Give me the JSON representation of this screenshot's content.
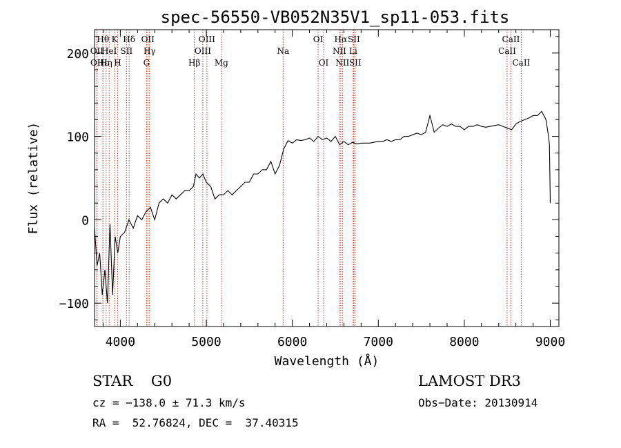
{
  "chart_data": {
    "type": "line",
    "title": "spec-56550-VB052N35V1_sp11-053.fits",
    "xlabel": "Wavelength (Å)",
    "ylabel": "Flux (relative)",
    "xlim": [
      3700,
      9100
    ],
    "ylim": [
      -128,
      228
    ],
    "xticks": [
      4000,
      5000,
      6000,
      7000,
      8000,
      9000
    ],
    "yticks": [
      -100,
      0,
      100,
      200
    ],
    "series": [
      {
        "name": "flux",
        "x": [
          3700,
          3730,
          3760,
          3790,
          3820,
          3850,
          3880,
          3910,
          3940,
          3970,
          4000,
          4050,
          4100,
          4150,
          4200,
          4250,
          4300,
          4350,
          4400,
          4450,
          4500,
          4550,
          4600,
          4650,
          4700,
          4750,
          4800,
          4850,
          4880,
          4920,
          4960,
          5000,
          5050,
          5100,
          5150,
          5200,
          5250,
          5300,
          5350,
          5400,
          5450,
          5500,
          5550,
          5600,
          5650,
          5700,
          5750,
          5800,
          5850,
          5900,
          5950,
          6000,
          6050,
          6100,
          6150,
          6200,
          6250,
          6300,
          6350,
          6400,
          6450,
          6500,
          6550,
          6600,
          6650,
          6700,
          6750,
          6800,
          6850,
          6900,
          6950,
          7000,
          7050,
          7100,
          7150,
          7200,
          7250,
          7300,
          7350,
          7400,
          7450,
          7500,
          7550,
          7600,
          7650,
          7700,
          7750,
          7800,
          7850,
          7900,
          7950,
          8000,
          8050,
          8100,
          8150,
          8200,
          8250,
          8300,
          8350,
          8400,
          8450,
          8500,
          8550,
          8600,
          8650,
          8700,
          8750,
          8800,
          8850,
          8900,
          8950,
          8980,
          8990,
          9000
        ],
        "y": [
          -10,
          -55,
          -40,
          -90,
          -60,
          -100,
          -5,
          -90,
          -20,
          -40,
          -20,
          -15,
          0,
          -10,
          5,
          0,
          10,
          15,
          0,
          20,
          25,
          20,
          30,
          25,
          30,
          35,
          35,
          40,
          55,
          50,
          55,
          45,
          40,
          25,
          30,
          30,
          35,
          30,
          35,
          40,
          45,
          45,
          55,
          55,
          60,
          60,
          70,
          55,
          65,
          85,
          95,
          92,
          96,
          95,
          96,
          98,
          94,
          100,
          96,
          98,
          94,
          100,
          90,
          94,
          90,
          93,
          91,
          92,
          92,
          92,
          93,
          94,
          94,
          96,
          94,
          96,
          96,
          100,
          100,
          102,
          104,
          102,
          105,
          125,
          105,
          110,
          114,
          112,
          115,
          112,
          112,
          108,
          112,
          112,
          114,
          112,
          111,
          112,
          113,
          114,
          112,
          110,
          108,
          115,
          118,
          120,
          122,
          125,
          125,
          130,
          120,
          100,
          90,
          20
        ]
      }
    ],
    "lines_top": [
      {
        "label": "Hθ",
        "wave": 3798
      },
      {
        "label": "K",
        "wave": 3934
      },
      {
        "label": "Hδ",
        "wave": 4102
      },
      {
        "label": "OII",
        "wave": 4320
      },
      {
        "label": "OIII",
        "wave": 5007
      },
      {
        "label": "OI",
        "wave": 6300
      },
      {
        "label": "Hα",
        "wave": 6563
      },
      {
        "label": "SII",
        "wave": 6716
      },
      {
        "label": "CaII",
        "wave": 8542
      }
    ],
    "lines_mid": [
      {
        "label": "OII",
        "wave": 3727
      },
      {
        "label": "HeI",
        "wave": 3870
      },
      {
        "label": "SII",
        "wave": 4072
      },
      {
        "label": "Hγ",
        "wave": 4340
      },
      {
        "label": "OIII",
        "wave": 4959
      },
      {
        "label": "Na",
        "wave": 5893
      },
      {
        "label": "NII",
        "wave": 6548
      },
      {
        "label": "Li",
        "wave": 6708
      },
      {
        "label": "CaII",
        "wave": 8498
      }
    ],
    "lines_low": [
      {
        "label": "OII",
        "wave": 3729
      },
      {
        "label": "Hε",
        "wave": 3797
      },
      {
        "label": "Hη",
        "wave": 3835
      },
      {
        "label": "H",
        "wave": 3969
      },
      {
        "label": "G",
        "wave": 4305
      },
      {
        "label": "Hβ",
        "wave": 4861
      },
      {
        "label": "Mg",
        "wave": 5175
      },
      {
        "label": "OI",
        "wave": 6364
      },
      {
        "label": "NII",
        "wave": 6583
      },
      {
        "label": "SII",
        "wave": 6731
      },
      {
        "label": "CaII",
        "wave": 8662
      }
    ],
    "line_color": "#c0392b"
  },
  "info": {
    "class_line": "STAR    G0",
    "survey": "LAMOST DR3",
    "cz": "cz = −138.0 ± 71.3 km/s",
    "obs_date": "Obs−Date: 20130914",
    "coords": "RA =  52.76824, DEC =  37.40315"
  }
}
